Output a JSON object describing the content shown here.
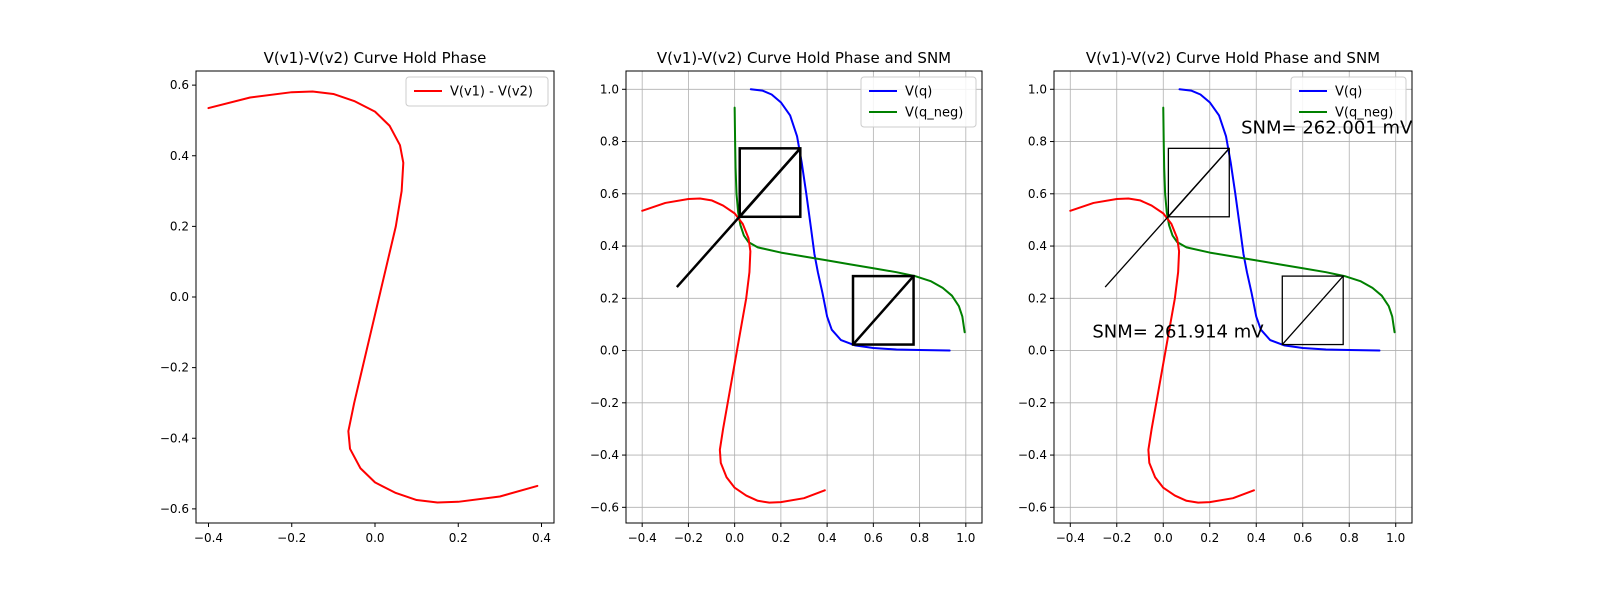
{
  "chart_data": [
    {
      "type": "line",
      "title": "V(v1)-V(v2) Curve Hold Phase",
      "xlabel": "",
      "ylabel": "",
      "xlim": [
        -0.43,
        0.43
      ],
      "ylim": [
        -0.64,
        0.64
      ],
      "grid": false,
      "legend_position": "upper-right",
      "xticks": [
        -0.4,
        -0.2,
        0.0,
        0.2,
        0.4
      ],
      "xtick_labels": [
        "−0.4",
        "−0.2",
        "0.0",
        "0.2",
        "0.4"
      ],
      "yticks": [
        -0.6,
        -0.4,
        -0.2,
        0.0,
        0.2,
        0.4,
        0.6
      ],
      "ytick_labels": [
        "−0.6",
        "−0.4",
        "−0.2",
        "0.0",
        "0.2",
        "0.4",
        "0.6"
      ],
      "series": [
        {
          "name": "V(v1) - V(v2)",
          "color": "#ff0000",
          "points": [
            [
              -0.4,
              0.535
            ],
            [
              -0.3,
              0.565
            ],
            [
              -0.2,
              0.58
            ],
            [
              -0.15,
              0.582
            ],
            [
              -0.1,
              0.575
            ],
            [
              -0.05,
              0.555
            ],
            [
              0.0,
              0.525
            ],
            [
              0.035,
              0.485
            ],
            [
              0.06,
              0.43
            ],
            [
              0.068,
              0.38
            ],
            [
              0.064,
              0.3
            ],
            [
              0.05,
              0.2
            ],
            [
              0.03,
              0.1
            ],
            [
              0.01,
              0.0
            ],
            [
              -0.01,
              -0.1
            ],
            [
              -0.03,
              -0.2
            ],
            [
              -0.05,
              -0.3
            ],
            [
              -0.064,
              -0.38
            ],
            [
              -0.06,
              -0.43
            ],
            [
              -0.035,
              -0.485
            ],
            [
              0.0,
              -0.525
            ],
            [
              0.05,
              -0.555
            ],
            [
              0.1,
              -0.575
            ],
            [
              0.15,
              -0.582
            ],
            [
              0.2,
              -0.58
            ],
            [
              0.3,
              -0.565
            ],
            [
              0.39,
              -0.535
            ]
          ]
        }
      ]
    },
    {
      "type": "line",
      "title": "V(v1)-V(v2) Curve Hold Phase and SNM",
      "xlabel": "",
      "ylabel": "",
      "xlim": [
        -0.47,
        1.07
      ],
      "ylim": [
        -0.66,
        1.07
      ],
      "grid": true,
      "legend_position": "upper-right",
      "xticks": [
        -0.4,
        -0.2,
        0.0,
        0.2,
        0.4,
        0.6,
        0.8,
        1.0
      ],
      "xtick_labels": [
        "−0.4",
        "−0.2",
        "0.0",
        "0.2",
        "0.4",
        "0.6",
        "0.8",
        "1.0"
      ],
      "yticks": [
        -0.6,
        -0.4,
        -0.2,
        0.0,
        0.2,
        0.4,
        0.6,
        0.8,
        1.0
      ],
      "ytick_labels": [
        "−0.6",
        "−0.4",
        "−0.2",
        "0.0",
        "0.2",
        "0.4",
        "0.6",
        "0.8",
        "1.0"
      ],
      "series": [
        {
          "name": "V(q)",
          "color": "#0000ff",
          "points": [
            [
              0.07,
              1.0
            ],
            [
              0.12,
              0.995
            ],
            [
              0.16,
              0.98
            ],
            [
              0.2,
              0.95
            ],
            [
              0.24,
              0.9
            ],
            [
              0.27,
              0.82
            ],
            [
              0.29,
              0.72
            ],
            [
              0.31,
              0.6
            ],
            [
              0.33,
              0.47
            ],
            [
              0.345,
              0.37
            ],
            [
              0.36,
              0.3
            ],
            [
              0.38,
              0.22
            ],
            [
              0.4,
              0.13
            ],
            [
              0.42,
              0.08
            ],
            [
              0.46,
              0.04
            ],
            [
              0.52,
              0.02
            ],
            [
              0.6,
              0.01
            ],
            [
              0.7,
              0.004
            ],
            [
              0.8,
              0.002
            ],
            [
              0.93,
              0.0
            ]
          ]
        },
        {
          "name": "V(q_neg)",
          "color": "#008000",
          "points": [
            [
              0.0,
              0.93
            ],
            [
              0.002,
              0.8
            ],
            [
              0.004,
              0.7
            ],
            [
              0.008,
              0.6
            ],
            [
              0.015,
              0.53
            ],
            [
              0.025,
              0.48
            ],
            [
              0.04,
              0.44
            ],
            [
              0.06,
              0.415
            ],
            [
              0.1,
              0.395
            ],
            [
              0.2,
              0.375
            ],
            [
              0.3,
              0.36
            ],
            [
              0.4,
              0.345
            ],
            [
              0.5,
              0.33
            ],
            [
              0.6,
              0.315
            ],
            [
              0.7,
              0.3
            ],
            [
              0.78,
              0.285
            ],
            [
              0.85,
              0.265
            ],
            [
              0.9,
              0.24
            ],
            [
              0.94,
              0.21
            ],
            [
              0.97,
              0.17
            ],
            [
              0.985,
              0.13
            ],
            [
              0.995,
              0.07
            ]
          ]
        },
        {
          "name": "",
          "color": "#ff0000",
          "points": [
            [
              -0.4,
              0.535
            ],
            [
              -0.3,
              0.565
            ],
            [
              -0.2,
              0.58
            ],
            [
              -0.15,
              0.582
            ],
            [
              -0.1,
              0.575
            ],
            [
              -0.05,
              0.555
            ],
            [
              0.0,
              0.525
            ],
            [
              0.035,
              0.485
            ],
            [
              0.06,
              0.43
            ],
            [
              0.068,
              0.38
            ],
            [
              0.064,
              0.3
            ],
            [
              0.05,
              0.2
            ],
            [
              0.03,
              0.1
            ],
            [
              0.01,
              0.0
            ],
            [
              -0.01,
              -0.1
            ],
            [
              -0.03,
              -0.2
            ],
            [
              -0.05,
              -0.3
            ],
            [
              -0.064,
              -0.38
            ],
            [
              -0.06,
              -0.43
            ],
            [
              -0.035,
              -0.485
            ],
            [
              0.0,
              -0.525
            ],
            [
              0.05,
              -0.555
            ],
            [
              0.1,
              -0.575
            ],
            [
              0.15,
              -0.582
            ],
            [
              0.2,
              -0.58
            ],
            [
              0.3,
              -0.565
            ],
            [
              0.39,
              -0.535
            ]
          ]
        }
      ],
      "snm_boxes": [
        {
          "x1": 0.022,
          "y1": 0.512,
          "x2": 0.284,
          "y2": 0.774
        },
        {
          "x1": 0.512,
          "y1": 0.023,
          "x2": 0.774,
          "y2": 0.285
        }
      ],
      "diagonal": [
        [
          -0.25,
          0.243
        ],
        [
          0.284,
          0.774
        ]
      ],
      "annotations": []
    },
    {
      "type": "line",
      "title": "V(v1)-V(v2) Curve Hold Phase and SNM",
      "xlabel": "",
      "ylabel": "",
      "xlim": [
        -0.47,
        1.07
      ],
      "ylim": [
        -0.66,
        1.07
      ],
      "grid": true,
      "legend_position": "upper-right",
      "xticks": [
        -0.4,
        -0.2,
        0.0,
        0.2,
        0.4,
        0.6,
        0.8,
        1.0
      ],
      "xtick_labels": [
        "−0.4",
        "−0.2",
        "0.0",
        "0.2",
        "0.4",
        "0.6",
        "0.8",
        "1.0"
      ],
      "yticks": [
        -0.6,
        -0.4,
        -0.2,
        0.0,
        0.2,
        0.4,
        0.6,
        0.8,
        1.0
      ],
      "ytick_labels": [
        "−0.6",
        "−0.4",
        "−0.2",
        "0.0",
        "0.2",
        "0.4",
        "0.6",
        "0.8",
        "1.0"
      ],
      "series": [
        {
          "name": "V(q)",
          "color": "#0000ff",
          "points": [
            [
              0.07,
              1.0
            ],
            [
              0.12,
              0.995
            ],
            [
              0.16,
              0.98
            ],
            [
              0.2,
              0.95
            ],
            [
              0.24,
              0.9
            ],
            [
              0.27,
              0.82
            ],
            [
              0.29,
              0.72
            ],
            [
              0.31,
              0.6
            ],
            [
              0.33,
              0.47
            ],
            [
              0.345,
              0.37
            ],
            [
              0.36,
              0.3
            ],
            [
              0.38,
              0.22
            ],
            [
              0.4,
              0.13
            ],
            [
              0.42,
              0.08
            ],
            [
              0.46,
              0.04
            ],
            [
              0.52,
              0.02
            ],
            [
              0.6,
              0.01
            ],
            [
              0.7,
              0.004
            ],
            [
              0.8,
              0.002
            ],
            [
              0.93,
              0.0
            ]
          ]
        },
        {
          "name": "V(q_neg)",
          "color": "#008000",
          "points": [
            [
              0.0,
              0.93
            ],
            [
              0.002,
              0.8
            ],
            [
              0.004,
              0.7
            ],
            [
              0.008,
              0.6
            ],
            [
              0.015,
              0.53
            ],
            [
              0.025,
              0.48
            ],
            [
              0.04,
              0.44
            ],
            [
              0.06,
              0.415
            ],
            [
              0.1,
              0.395
            ],
            [
              0.2,
              0.375
            ],
            [
              0.3,
              0.36
            ],
            [
              0.4,
              0.345
            ],
            [
              0.5,
              0.33
            ],
            [
              0.6,
              0.315
            ],
            [
              0.7,
              0.3
            ],
            [
              0.78,
              0.285
            ],
            [
              0.85,
              0.265
            ],
            [
              0.9,
              0.24
            ],
            [
              0.94,
              0.21
            ],
            [
              0.97,
              0.17
            ],
            [
              0.985,
              0.13
            ],
            [
              0.995,
              0.07
            ]
          ]
        },
        {
          "name": "",
          "color": "#ff0000",
          "points": [
            [
              -0.4,
              0.535
            ],
            [
              -0.3,
              0.565
            ],
            [
              -0.2,
              0.58
            ],
            [
              -0.15,
              0.582
            ],
            [
              -0.1,
              0.575
            ],
            [
              -0.05,
              0.555
            ],
            [
              0.0,
              0.525
            ],
            [
              0.035,
              0.485
            ],
            [
              0.06,
              0.43
            ],
            [
              0.068,
              0.38
            ],
            [
              0.064,
              0.3
            ],
            [
              0.05,
              0.2
            ],
            [
              0.03,
              0.1
            ],
            [
              0.01,
              0.0
            ],
            [
              -0.01,
              -0.1
            ],
            [
              -0.03,
              -0.2
            ],
            [
              -0.05,
              -0.3
            ],
            [
              -0.064,
              -0.38
            ],
            [
              -0.06,
              -0.43
            ],
            [
              -0.035,
              -0.485
            ],
            [
              0.0,
              -0.525
            ],
            [
              0.05,
              -0.555
            ],
            [
              0.1,
              -0.575
            ],
            [
              0.15,
              -0.582
            ],
            [
              0.2,
              -0.58
            ],
            [
              0.3,
              -0.565
            ],
            [
              0.39,
              -0.535
            ]
          ]
        }
      ],
      "snm_boxes": [
        {
          "x1": 0.022,
          "y1": 0.512,
          "x2": 0.284,
          "y2": 0.774
        },
        {
          "x1": 0.512,
          "y1": 0.023,
          "x2": 0.774,
          "y2": 0.285
        }
      ],
      "diagonal": [
        [
          -0.25,
          0.243
        ],
        [
          0.284,
          0.774
        ]
      ],
      "annotations": [
        {
          "text": "SNM= 262.001 mV",
          "x": 0.335,
          "y": 0.83
        },
        {
          "text": "SNM= 261.914 mV",
          "x": -0.305,
          "y": 0.05
        }
      ]
    }
  ]
}
